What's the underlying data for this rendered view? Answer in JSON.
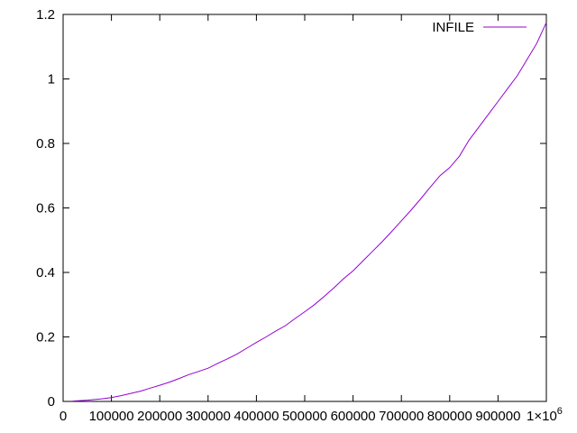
{
  "chart_data": {
    "type": "line",
    "title": "",
    "xlabel": "",
    "ylabel": "",
    "xlim": [
      0,
      1000000
    ],
    "ylim": [
      0,
      1.2
    ],
    "grid": false,
    "legend_position": "top-right",
    "x_ticks": [
      {
        "value": 0,
        "label": "0"
      },
      {
        "value": 100000,
        "label": "100000"
      },
      {
        "value": 200000,
        "label": "200000"
      },
      {
        "value": 300000,
        "label": "300000"
      },
      {
        "value": 400000,
        "label": "400000"
      },
      {
        "value": 500000,
        "label": "500000"
      },
      {
        "value": 600000,
        "label": "600000"
      },
      {
        "value": 700000,
        "label": "700000"
      },
      {
        "value": 800000,
        "label": "800000"
      },
      {
        "value": 900000,
        "label": "900000"
      },
      {
        "value": 1000000,
        "label": "1×10",
        "sup": "6"
      }
    ],
    "y_ticks": [
      {
        "value": 0,
        "label": "0"
      },
      {
        "value": 0.2,
        "label": "0.2"
      },
      {
        "value": 0.4,
        "label": "0.4"
      },
      {
        "value": 0.6,
        "label": "0.6"
      },
      {
        "value": 0.8,
        "label": "0.8"
      },
      {
        "value": 1,
        "label": "1"
      },
      {
        "value": 1.2,
        "label": "1.2"
      }
    ],
    "series": [
      {
        "name": "INFILE",
        "color": "#9400d3",
        "x": [
          20000,
          50000,
          80000,
          100000,
          120000,
          140000,
          160000,
          180000,
          200000,
          220000,
          240000,
          260000,
          280000,
          300000,
          320000,
          340000,
          360000,
          380000,
          400000,
          420000,
          440000,
          460000,
          480000,
          500000,
          520000,
          540000,
          560000,
          580000,
          600000,
          620000,
          640000,
          660000,
          680000,
          700000,
          720000,
          740000,
          760000,
          780000,
          800000,
          820000,
          840000,
          860000,
          880000,
          900000,
          920000,
          940000,
          960000,
          980000,
          1000000
        ],
        "values": [
          0.001,
          0.004,
          0.008,
          0.012,
          0.018,
          0.025,
          0.032,
          0.041,
          0.05,
          0.06,
          0.071,
          0.083,
          0.093,
          0.103,
          0.118,
          0.132,
          0.147,
          0.165,
          0.183,
          0.2,
          0.218,
          0.235,
          0.257,
          0.278,
          0.3,
          0.325,
          0.352,
          0.38,
          0.405,
          0.435,
          0.465,
          0.495,
          0.527,
          0.56,
          0.593,
          0.628,
          0.665,
          0.7,
          0.725,
          0.76,
          0.81,
          0.85,
          0.89,
          0.93,
          0.97,
          1.01,
          1.06,
          1.11,
          1.175
        ]
      }
    ]
  }
}
